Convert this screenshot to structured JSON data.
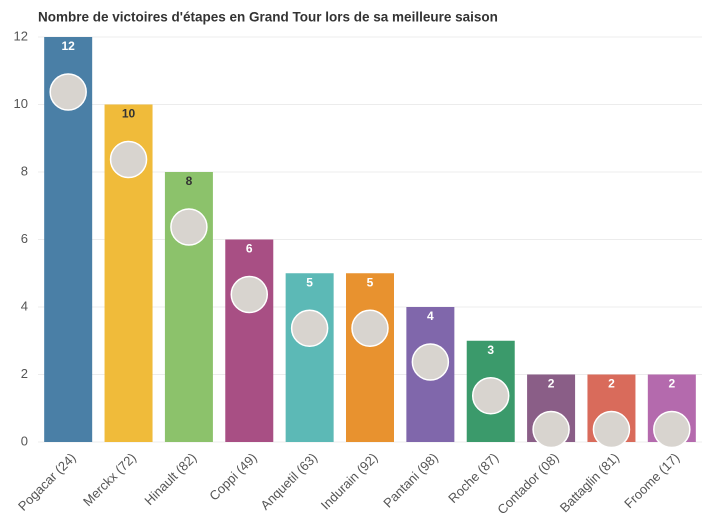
{
  "chart_data": {
    "type": "bar",
    "title": "Nombre de victoires d'étapes en Grand Tour lors de sa meilleure saison",
    "categories": [
      "Pogacar (24)",
      "Merckx (72)",
      "Hinault (82)",
      "Coppi (49)",
      "Anquetil (63)",
      "Indurain (92)",
      "Pantani (98)",
      "Roche (87)",
      "Contador (08)",
      "Battaglin (81)",
      "Froome (17)"
    ],
    "values": [
      12,
      10,
      8,
      6,
      5,
      5,
      4,
      3,
      2,
      2,
      2
    ],
    "colors": [
      "#4a7fa6",
      "#f0bb3a",
      "#8cc26b",
      "#a84f84",
      "#5cb9b6",
      "#e8922f",
      "#8067ab",
      "#3b9a6b",
      "#8a5e87",
      "#d96b5b",
      "#b46aad"
    ],
    "ylim": [
      0,
      12
    ],
    "yticks": [
      0,
      2,
      4,
      6,
      8,
      10,
      12
    ],
    "grid": true
  }
}
